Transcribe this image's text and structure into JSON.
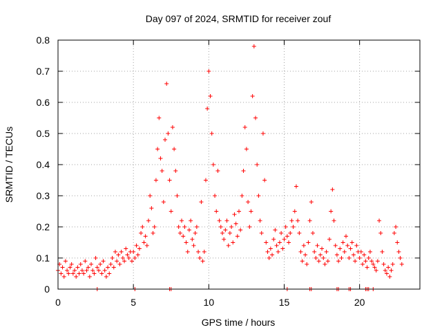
{
  "chart_data": {
    "type": "scatter",
    "title": "Day 097 of 2024, SRMTID for receiver zouf",
    "xlabel": "GPS time / hours",
    "ylabel": "SRMTID / TECUs",
    "xlim": [
      0,
      24
    ],
    "ylim": [
      0,
      0.8
    ],
    "xticks": [
      0,
      5,
      10,
      15,
      20
    ],
    "xtick_labels": [
      "0",
      "5",
      "10",
      "15",
      "20"
    ],
    "yticks": [
      0,
      0.1,
      0.2,
      0.3,
      0.4,
      0.5,
      0.6,
      0.7,
      0.8
    ],
    "ytick_labels": [
      "0",
      "0.1",
      "0.2",
      "0.3",
      "0.4",
      "0.5",
      "0.6",
      "0.7",
      "0.8"
    ],
    "grid": true,
    "marker": "plus",
    "color": "#ff0000",
    "series": [
      {
        "name": "SRMTID",
        "points": [
          [
            0.0,
            0.06
          ],
          [
            0.1,
            0.08
          ],
          [
            0.2,
            0.05
          ],
          [
            0.3,
            0.07
          ],
          [
            0.4,
            0.04
          ],
          [
            0.5,
            0.09
          ],
          [
            0.6,
            0.06
          ],
          [
            0.7,
            0.05
          ],
          [
            0.8,
            0.07
          ],
          [
            0.9,
            0.08
          ],
          [
            1.0,
            0.05
          ],
          [
            1.1,
            0.06
          ],
          [
            1.2,
            0.04
          ],
          [
            1.3,
            0.07
          ],
          [
            1.4,
            0.05
          ],
          [
            1.5,
            0.08
          ],
          [
            1.6,
            0.06
          ],
          [
            1.7,
            0.05
          ],
          [
            1.8,
            0.09
          ],
          [
            1.9,
            0.06
          ],
          [
            2.0,
            0.07
          ],
          [
            2.1,
            0.04
          ],
          [
            2.2,
            0.08
          ],
          [
            2.3,
            0.06
          ],
          [
            2.4,
            0.05
          ],
          [
            2.5,
            0.1
          ],
          [
            2.6,
            0.07
          ],
          [
            2.7,
            0.06
          ],
          [
            2.8,
            0.08
          ],
          [
            2.9,
            0.05
          ],
          [
            3.0,
            0.09
          ],
          [
            3.1,
            0.06
          ],
          [
            3.2,
            0.04
          ],
          [
            3.3,
            0.07
          ],
          [
            3.4,
            0.05
          ],
          [
            3.5,
            0.08
          ],
          [
            3.6,
            0.1
          ],
          [
            3.7,
            0.07
          ],
          [
            3.8,
            0.12
          ],
          [
            3.9,
            0.09
          ],
          [
            4.0,
            0.11
          ],
          [
            4.1,
            0.08
          ],
          [
            4.2,
            0.12
          ],
          [
            4.3,
            0.1
          ],
          [
            4.4,
            0.09
          ],
          [
            4.5,
            0.13
          ],
          [
            4.6,
            0.11
          ],
          [
            4.7,
            0.1
          ],
          [
            4.8,
            0.12
          ],
          [
            4.9,
            0.09
          ],
          [
            5.0,
            0.12
          ],
          [
            5.1,
            0.1
          ],
          [
            5.2,
            0.14
          ],
          [
            5.3,
            0.11
          ],
          [
            5.4,
            0.13
          ],
          [
            5.5,
            0.18
          ],
          [
            5.6,
            0.2
          ],
          [
            5.7,
            0.15
          ],
          [
            5.8,
            0.17
          ],
          [
            5.9,
            0.14
          ],
          [
            6.0,
            0.22
          ],
          [
            6.1,
            0.3
          ],
          [
            6.2,
            0.26
          ],
          [
            6.3,
            0.18
          ],
          [
            6.4,
            0.2
          ],
          [
            6.5,
            0.35
          ],
          [
            6.6,
            0.45
          ],
          [
            6.7,
            0.55
          ],
          [
            6.8,
            0.42
          ],
          [
            6.9,
            0.38
          ],
          [
            7.0,
            0.28
          ],
          [
            7.1,
            0.48
          ],
          [
            7.2,
            0.66
          ],
          [
            7.3,
            0.5
          ],
          [
            7.4,
            0.35
          ],
          [
            7.5,
            0.25
          ],
          [
            7.6,
            0.52
          ],
          [
            7.7,
            0.45
          ],
          [
            7.8,
            0.38
          ],
          [
            7.9,
            0.3
          ],
          [
            8.0,
            0.2
          ],
          [
            8.1,
            0.18
          ],
          [
            8.2,
            0.22
          ],
          [
            8.3,
            0.17
          ],
          [
            8.4,
            0.2
          ],
          [
            8.5,
            0.15
          ],
          [
            8.6,
            0.12
          ],
          [
            8.7,
            0.19
          ],
          [
            8.8,
            0.22
          ],
          [
            8.9,
            0.16
          ],
          [
            9.0,
            0.14
          ],
          [
            9.1,
            0.18
          ],
          [
            9.2,
            0.2
          ],
          [
            9.3,
            0.12
          ],
          [
            9.4,
            0.1
          ],
          [
            9.5,
            0.28
          ],
          [
            9.6,
            0.09
          ],
          [
            9.7,
            0.12
          ],
          [
            9.8,
            0.35
          ],
          [
            9.9,
            0.58
          ],
          [
            10.0,
            0.7
          ],
          [
            10.1,
            0.62
          ],
          [
            10.2,
            0.5
          ],
          [
            10.3,
            0.4
          ],
          [
            10.4,
            0.3
          ],
          [
            10.5,
            0.25
          ],
          [
            10.6,
            0.38
          ],
          [
            10.7,
            0.22
          ],
          [
            10.8,
            0.2
          ],
          [
            10.9,
            0.18
          ],
          [
            11.0,
            0.16
          ],
          [
            11.1,
            0.19
          ],
          [
            11.2,
            0.22
          ],
          [
            11.3,
            0.14
          ],
          [
            11.4,
            0.18
          ],
          [
            11.5,
            0.2
          ],
          [
            11.6,
            0.15
          ],
          [
            11.7,
            0.24
          ],
          [
            11.8,
            0.21
          ],
          [
            11.9,
            0.17
          ],
          [
            12.0,
            0.25
          ],
          [
            12.1,
            0.19
          ],
          [
            12.2,
            0.3
          ],
          [
            12.3,
            0.38
          ],
          [
            12.4,
            0.52
          ],
          [
            12.5,
            0.45
          ],
          [
            12.6,
            0.28
          ],
          [
            12.7,
            0.2
          ],
          [
            12.8,
            0.25
          ],
          [
            12.9,
            0.62
          ],
          [
            13.0,
            0.78
          ],
          [
            13.1,
            0.55
          ],
          [
            13.2,
            0.4
          ],
          [
            13.3,
            0.3
          ],
          [
            13.4,
            0.22
          ],
          [
            13.5,
            0.18
          ],
          [
            13.6,
            0.5
          ],
          [
            13.7,
            0.35
          ],
          [
            13.8,
            0.15
          ],
          [
            13.9,
            0.12
          ],
          [
            14.0,
            0.1
          ],
          [
            14.1,
            0.13
          ],
          [
            14.2,
            0.11
          ],
          [
            14.3,
            0.16
          ],
          [
            14.4,
            0.19
          ],
          [
            14.5,
            0.14
          ],
          [
            14.6,
            0.12
          ],
          [
            14.7,
            0.15
          ],
          [
            14.8,
            0.18
          ],
          [
            14.9,
            0.13
          ],
          [
            15.0,
            0.16
          ],
          [
            15.1,
            0.2
          ],
          [
            15.2,
            0.17
          ],
          [
            15.3,
            0.15
          ],
          [
            15.4,
            0.18
          ],
          [
            15.5,
            0.22
          ],
          [
            15.6,
            0.2
          ],
          [
            15.7,
            0.25
          ],
          [
            15.8,
            0.33
          ],
          [
            15.9,
            0.22
          ],
          [
            16.0,
            0.18
          ],
          [
            16.1,
            0.12
          ],
          [
            16.2,
            0.09
          ],
          [
            16.3,
            0.14
          ],
          [
            16.4,
            0.11
          ],
          [
            16.5,
            0.08
          ],
          [
            16.6,
            0.15
          ],
          [
            16.7,
            0.22
          ],
          [
            16.8,
            0.28
          ],
          [
            16.9,
            0.18
          ],
          [
            17.0,
            0.12
          ],
          [
            17.1,
            0.1
          ],
          [
            17.2,
            0.14
          ],
          [
            17.3,
            0.09
          ],
          [
            17.4,
            0.11
          ],
          [
            17.5,
            0.13
          ],
          [
            17.6,
            0.1
          ],
          [
            17.7,
            0.08
          ],
          [
            17.8,
            0.12
          ],
          [
            17.9,
            0.09
          ],
          [
            18.0,
            0.16
          ],
          [
            18.1,
            0.25
          ],
          [
            18.2,
            0.32
          ],
          [
            18.3,
            0.22
          ],
          [
            18.4,
            0.14
          ],
          [
            18.5,
            0.11
          ],
          [
            18.6,
            0.09
          ],
          [
            18.7,
            0.13
          ],
          [
            18.8,
            0.1
          ],
          [
            18.9,
            0.15
          ],
          [
            19.0,
            0.12
          ],
          [
            19.1,
            0.17
          ],
          [
            19.2,
            0.14
          ],
          [
            19.3,
            0.1
          ],
          [
            19.4,
            0.13
          ],
          [
            19.5,
            0.15
          ],
          [
            19.6,
            0.11
          ],
          [
            19.7,
            0.09
          ],
          [
            19.8,
            0.14
          ],
          [
            19.9,
            0.12
          ],
          [
            20.0,
            0.1
          ],
          [
            20.1,
            0.12
          ],
          [
            20.2,
            0.08
          ],
          [
            20.3,
            0.11
          ],
          [
            20.4,
            0.09
          ],
          [
            20.5,
            0.07
          ],
          [
            20.6,
            0.1
          ],
          [
            20.7,
            0.12
          ],
          [
            20.8,
            0.09
          ],
          [
            20.9,
            0.08
          ],
          [
            21.0,
            0.07
          ],
          [
            21.1,
            0.06
          ],
          [
            21.2,
            0.09
          ],
          [
            21.3,
            0.22
          ],
          [
            21.4,
            0.18
          ],
          [
            21.5,
            0.12
          ],
          [
            21.6,
            0.08
          ],
          [
            21.7,
            0.06
          ],
          [
            21.8,
            0.05
          ],
          [
            21.9,
            0.07
          ],
          [
            22.0,
            0.04
          ],
          [
            22.1,
            0.06
          ],
          [
            22.2,
            0.08
          ],
          [
            22.3,
            0.18
          ],
          [
            22.4,
            0.2
          ],
          [
            22.5,
            0.15
          ],
          [
            22.6,
            0.12
          ],
          [
            22.7,
            0.1
          ],
          [
            22.8,
            0.08
          ]
        ]
      }
    ],
    "zero_markers_x": [
      2.6,
      5.1,
      7.4,
      7.5,
      15.2,
      16.7,
      16.8,
      18.5,
      18.6,
      19.3,
      19.4,
      20.4,
      20.5,
      20.6,
      20.9
    ]
  }
}
